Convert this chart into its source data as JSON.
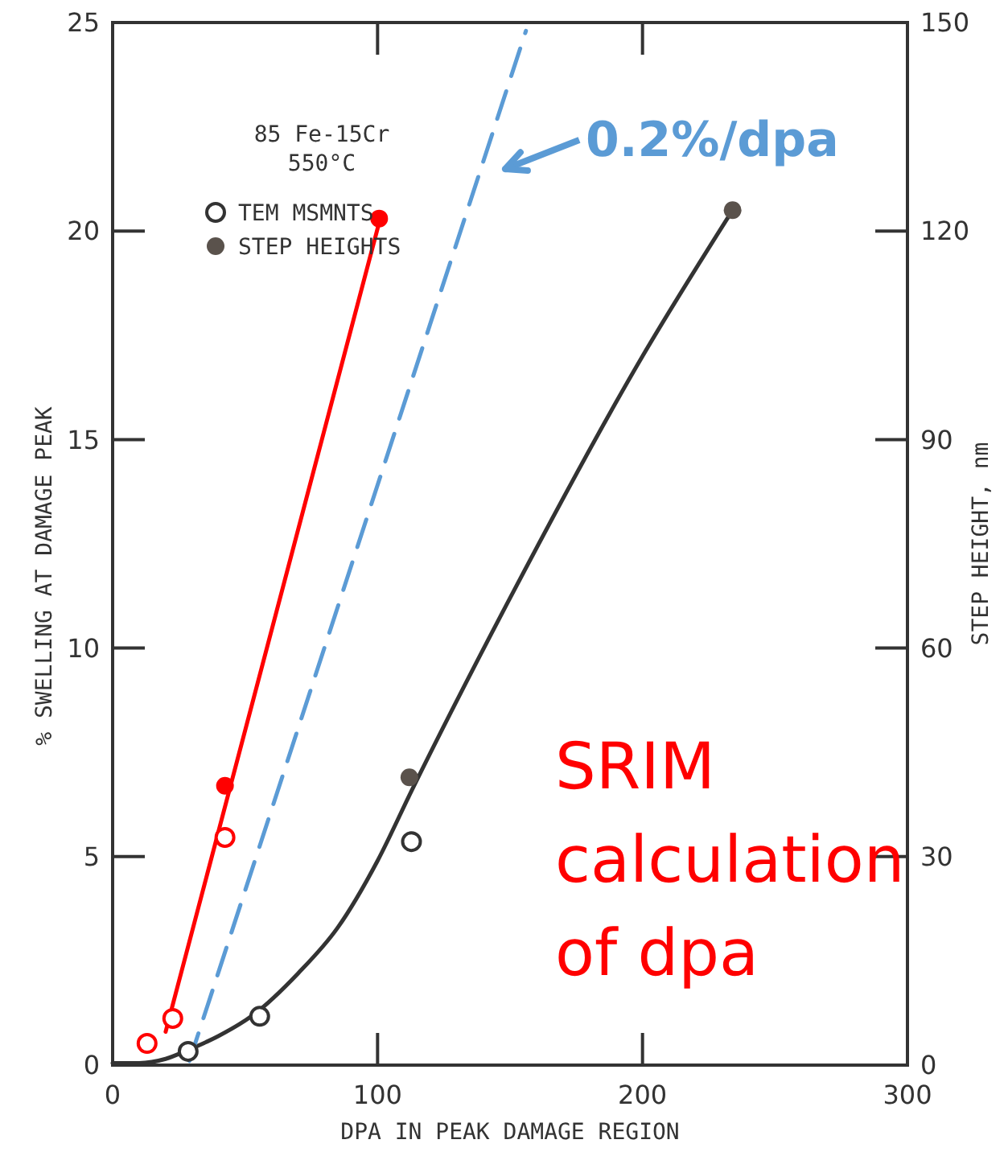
{
  "chart_data": {
    "type": "scatter",
    "xlabel": "DPA IN PEAK DAMAGE REGION",
    "ylabel": "% SWELLING AT DAMAGE PEAK",
    "y2label": "STEP HEIGHT, nm",
    "legend_title": "85 Fe-15Cr\n550°C",
    "legend": "top left",
    "xlim": [
      0,
      300
    ],
    "xticks": [
      0,
      100,
      200,
      300
    ],
    "ylim": [
      0,
      25
    ],
    "yticks": [
      0,
      5,
      10,
      15,
      20,
      25
    ],
    "y2lim": [
      0,
      150
    ],
    "y2ticks": [
      0,
      30,
      60,
      90,
      120,
      150
    ],
    "grid": false,
    "series": [
      {
        "type": "line",
        "color": "#333333",
        "x": [
          0,
          10,
          20,
          28,
          40,
          53,
          70,
          85,
          100,
          113,
          150,
          200,
          234
        ],
        "values": [
          0.05,
          0.05,
          0.15,
          0.35,
          0.7,
          1.2,
          2.2,
          3.3,
          4.9,
          6.6,
          11.2,
          17,
          20.5
        ],
        "line_style": "solid",
        "marker": "none"
      },
      {
        "type": "line",
        "color": "#ff0000",
        "x": [
          20,
          101
        ],
        "values": [
          0.8,
          20.3
        ],
        "line_style": "solid",
        "marker": "none"
      },
      {
        "type": "line",
        "color": "#5b9bd5",
        "x": [
          29,
          156
        ],
        "values": [
          0.1,
          24.8
        ],
        "line_style": "dashed",
        "marker": "none"
      },
      {
        "name": "TEM MSMNTS",
        "color": "#333333",
        "colors": [
          "#ffffff",
          "#ffffff",
          "#ffffff"
        ],
        "marker": "circle",
        "x": [
          28.5,
          55.5,
          112.8
        ],
        "values": [
          0.33,
          1.17,
          5.36
        ]
      },
      {
        "name": "STEP HEIGHTS",
        "color": "#5a524c",
        "marker": "circle",
        "x": [
          112,
          234
        ],
        "values": [
          6.9,
          20.5
        ]
      },
      {
        "color": "#ff0000",
        "colors": [
          "#ffffff",
          "#ffffff",
          "#ffffff"
        ],
        "marker": "circle",
        "x": [
          13,
          22.7,
          42.4
        ],
        "values": [
          0.52,
          1.12,
          5.46
        ]
      },
      {
        "color": "#ff0000",
        "marker": "circle",
        "x": [
          42.4,
          100.6
        ],
        "values": [
          6.7,
          20.3
        ]
      }
    ],
    "annotations": [
      "0.2%/dpa",
      "SRIM\ncalculation\nof dpa"
    ]
  }
}
